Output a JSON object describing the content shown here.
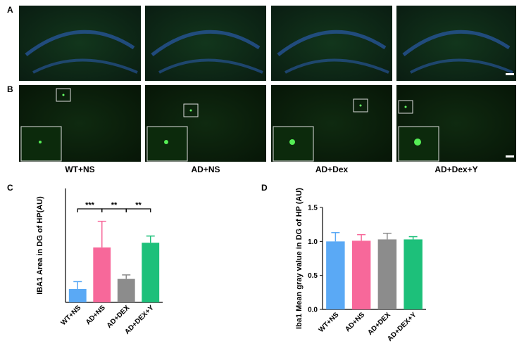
{
  "panels": [
    "A",
    "B",
    "C",
    "D"
  ],
  "images": {
    "captions": [
      "WT+NS",
      "AD+NS",
      "AD+Dex",
      "AD+Dex+Y"
    ]
  },
  "chart_data": [
    {
      "type": "bar",
      "y_label": "IBA1 Area in DG of HP(AU)",
      "categories": [
        "WT+NS",
        "AD+NS",
        "AD+DEX",
        "AD+DEX+Y"
      ],
      "values": [
        1.0,
        4.1,
        1.75,
        4.45
      ],
      "errors": [
        0.55,
        1.95,
        0.3,
        0.5
      ],
      "colors": [
        "#5aa9f5",
        "#f7689a",
        "#8c8c8c",
        "#1dc07a"
      ],
      "ylim": [
        0,
        8.5
      ],
      "annotations": [
        {
          "text": "***",
          "between": [
            "WT+NS",
            "AD+NS"
          ]
        },
        {
          "text": "**",
          "between": [
            "AD+NS",
            "AD+DEX"
          ]
        },
        {
          "text": "**",
          "between": [
            "AD+DEX",
            "AD+DEX+Y"
          ]
        }
      ]
    },
    {
      "type": "bar",
      "y_label": "Iba1 Mean gray value in DG of HP (AU)",
      "categories": [
        "WT+NS",
        "AD+NS",
        "AD+DEX",
        "AD+DEX+Y"
      ],
      "values": [
        1.0,
        1.01,
        1.03,
        1.03
      ],
      "errors": [
        0.13,
        0.09,
        0.09,
        0.04
      ],
      "colors": [
        "#5aa9f5",
        "#f7689a",
        "#8c8c8c",
        "#1dc07a"
      ],
      "ylim": [
        0,
        1.5
      ],
      "yticks": [
        {
          "value": 0,
          "label": "0.0"
        },
        {
          "value": 0.5,
          "label": "0.5"
        },
        {
          "value": 1,
          "label": "1.0"
        },
        {
          "value": 1.5,
          "label": "1.5"
        }
      ]
    }
  ]
}
